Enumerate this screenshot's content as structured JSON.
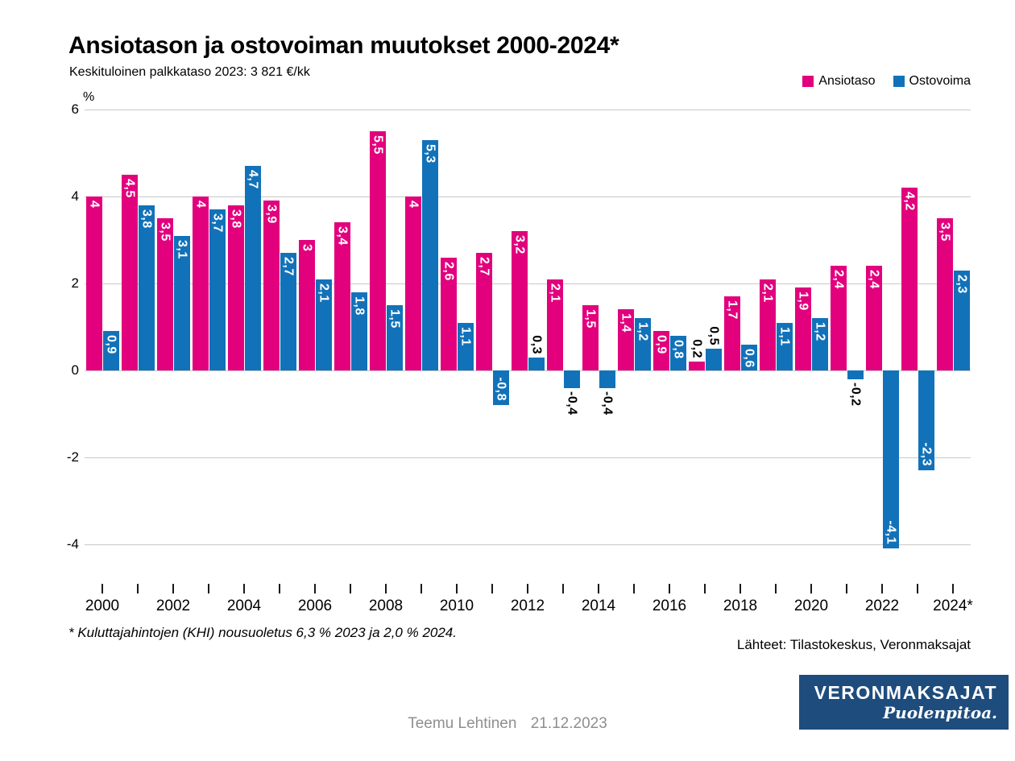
{
  "page": {
    "title": "Ansiotason ja ostovoiman muutokset 2000-2024*",
    "subtitle": "Keskituloinen palkkataso 2023: 3 821 €/kk",
    "footnote": "* Kuluttajahintojen (KHI) nousuoletus 6,3 % 2023 ja 2,0 % 2024.",
    "sources": "Lähteet: Tilastokeskus, Veronmaksajat",
    "footer_author": "Teemu Lehtinen",
    "footer_date": "21.12.2023"
  },
  "legend": [
    {
      "label": "Ansiotaso",
      "color": "#E2007D"
    },
    {
      "label": "Ostovoima",
      "color": "#1272B9"
    }
  ],
  "logo": {
    "name": "VERONMAKSAJAT",
    "tagline": "Puolenpitoa.",
    "bg_color": "#1E4C7D"
  },
  "colors": {
    "grid": "#c8c8c8",
    "inside_label": "#ffffff",
    "outside_label": "#000000",
    "footer_text": "#8f8f8f"
  },
  "chart_data": {
    "type": "bar",
    "title": "Ansiotason ja ostovoiman muutokset 2000-2024*",
    "subtitle": "Keskituloinen palkkataso 2023: 3 821 €/kk",
    "unit_label": "%",
    "ylim": [
      -4,
      6
    ],
    "yticks": [
      6,
      4,
      2,
      0,
      -2,
      -4
    ],
    "grid": true,
    "legend_position": "top-right",
    "x_label_step": 2,
    "categories": [
      "2000",
      "2001",
      "2002",
      "2003",
      "2004",
      "2005",
      "2006",
      "2007",
      "2008",
      "2009",
      "2010",
      "2011",
      "2012",
      "2013",
      "2014",
      "2015",
      "2016",
      "2017",
      "2018",
      "2019",
      "2020",
      "2021",
      "2022",
      "2023",
      "2024*"
    ],
    "series": [
      {
        "name": "Ansiotaso",
        "color": "#E2007D",
        "values": [
          4,
          4.5,
          3.5,
          4,
          3.8,
          3.9,
          3,
          3.4,
          5.5,
          4,
          2.6,
          2.7,
          3.2,
          2.1,
          1.5,
          1.4,
          0.9,
          0.2,
          1.7,
          2.1,
          1.9,
          2.4,
          2.4,
          4.2,
          3.5
        ],
        "labels": [
          "4",
          "4,5",
          "3,5",
          "4",
          "3,8",
          "3,9",
          "3",
          "3,4",
          "5,5",
          "4",
          "2,6",
          "2,7",
          "3,2",
          "2,1",
          "1,5",
          "1,4",
          "0,9",
          "0,2",
          "1,7",
          "2,1",
          "1,9",
          "2,4",
          "2,4",
          "4,2",
          "3,5"
        ]
      },
      {
        "name": "Ostovoima",
        "color": "#1272B9",
        "values": [
          0.9,
          3.8,
          3.1,
          3.7,
          4.7,
          2.7,
          2.1,
          1.8,
          1.5,
          5.3,
          1.1,
          -0.8,
          0.3,
          -0.4,
          -0.4,
          1.2,
          0.8,
          0.5,
          0.6,
          1.1,
          1.2,
          -0.2,
          -4.1,
          -2.3,
          2.3
        ],
        "labels": [
          "0,9",
          "3,8",
          "3,1",
          "3,7",
          "4,7",
          "2,7",
          "2,1",
          "1,8",
          "1,5",
          "5,3",
          "1,1",
          "-0,8",
          "0,3",
          "-0,4",
          "-0,4",
          "1,2",
          "0,8",
          "0,5",
          "0,6",
          "1,1",
          "1,2",
          "-0,2",
          "-4,1",
          "-2,3",
          "2,3"
        ]
      }
    ]
  }
}
